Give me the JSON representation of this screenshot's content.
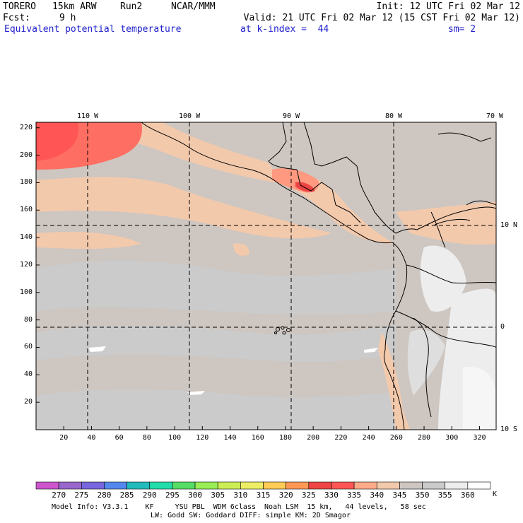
{
  "header": {
    "model": "TORERO",
    "resolution": "15km ARW",
    "run": "Run2",
    "org": "NCAR/MMM",
    "init": "Init: 12 UTC Fri 02 Mar 12",
    "fcst_label": "Fcst:",
    "fcst_value": "9 h",
    "valid": "Valid: 21 UTC Fri 02 Mar 12 (15 CST Fri 02 Mar 12)",
    "field": "Equivalent potential temperature",
    "level": "at k-index =  44",
    "smoothing": "sm= 2"
  },
  "map": {
    "lon_labels": [
      "110 W",
      "100 W",
      "90 W",
      "80 W",
      "70 W"
    ],
    "lat_labels": [
      "10 N",
      "0",
      "10 S"
    ],
    "y_ticks": [
      20,
      40,
      60,
      80,
      100,
      120,
      140,
      160,
      180,
      200,
      220
    ],
    "x_ticks": [
      20,
      40,
      60,
      80,
      100,
      120,
      140,
      160,
      180,
      200,
      220,
      240,
      260,
      280,
      300,
      320
    ],
    "x_range": [
      0,
      332
    ],
    "y_range": [
      0,
      224
    ],
    "islands_label": "Galapagos"
  },
  "colorbar": {
    "unit": "K",
    "levels": [
      270,
      275,
      280,
      285,
      290,
      295,
      300,
      305,
      310,
      315,
      320,
      325,
      330,
      335,
      340,
      345,
      350,
      355,
      360
    ],
    "colors": [
      "#cc55cc",
      "#9966cc",
      "#7766dd",
      "#5588ee",
      "#22bbbb",
      "#22ddaa",
      "#55dd66",
      "#99ee55",
      "#ccee55",
      "#eeee66",
      "#ffcc55",
      "#ff9955",
      "#ee4444",
      "#ff5555",
      "#ffaa88",
      "#f3c9ac",
      "#cdc6c1",
      "#cbcbcb",
      "#ededed",
      "#ffffff"
    ]
  },
  "footer": {
    "line1": "Model Info: V3.3.1    KF     YSU PBL  WDM 6class  Noah LSM  15 km,   44 levels,   58 sec",
    "line2": "LW: Godd SW: Goddard DIFF: simple KM: 2D Smagor"
  }
}
